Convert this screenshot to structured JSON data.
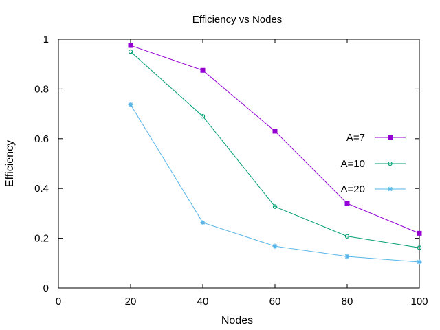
{
  "chart_data": {
    "type": "line",
    "title": "Efficiency vs Nodes",
    "xlabel": "Nodes",
    "ylabel": "Efficiency",
    "xlim": [
      0,
      100
    ],
    "ylim": [
      0,
      1
    ],
    "x_ticks": [
      "0",
      "20",
      "40",
      "60",
      "80",
      "100"
    ],
    "y_ticks": [
      "0",
      "0.2",
      "0.4",
      "0.6",
      "0.8",
      "1"
    ],
    "x_tick_values": [
      0,
      20,
      40,
      60,
      80,
      100
    ],
    "y_tick_values": [
      0,
      0.2,
      0.4,
      0.6,
      0.8,
      1
    ],
    "grid": false,
    "legend_position": "right",
    "x": [
      20,
      40,
      60,
      80,
      100
    ],
    "series": [
      {
        "name": "A=7",
        "values": [
          0.975,
          0.875,
          0.63,
          0.34,
          0.22
        ],
        "color": "#9400d3",
        "marker": "filled-square"
      },
      {
        "name": "A=10",
        "values": [
          0.95,
          0.69,
          0.327,
          0.208,
          0.162
        ],
        "color": "#009e73",
        "marker": "open-circle"
      },
      {
        "name": "A=20",
        "values": [
          0.737,
          0.263,
          0.168,
          0.127,
          0.105
        ],
        "color": "#56b4e9",
        "marker": "star"
      }
    ]
  }
}
